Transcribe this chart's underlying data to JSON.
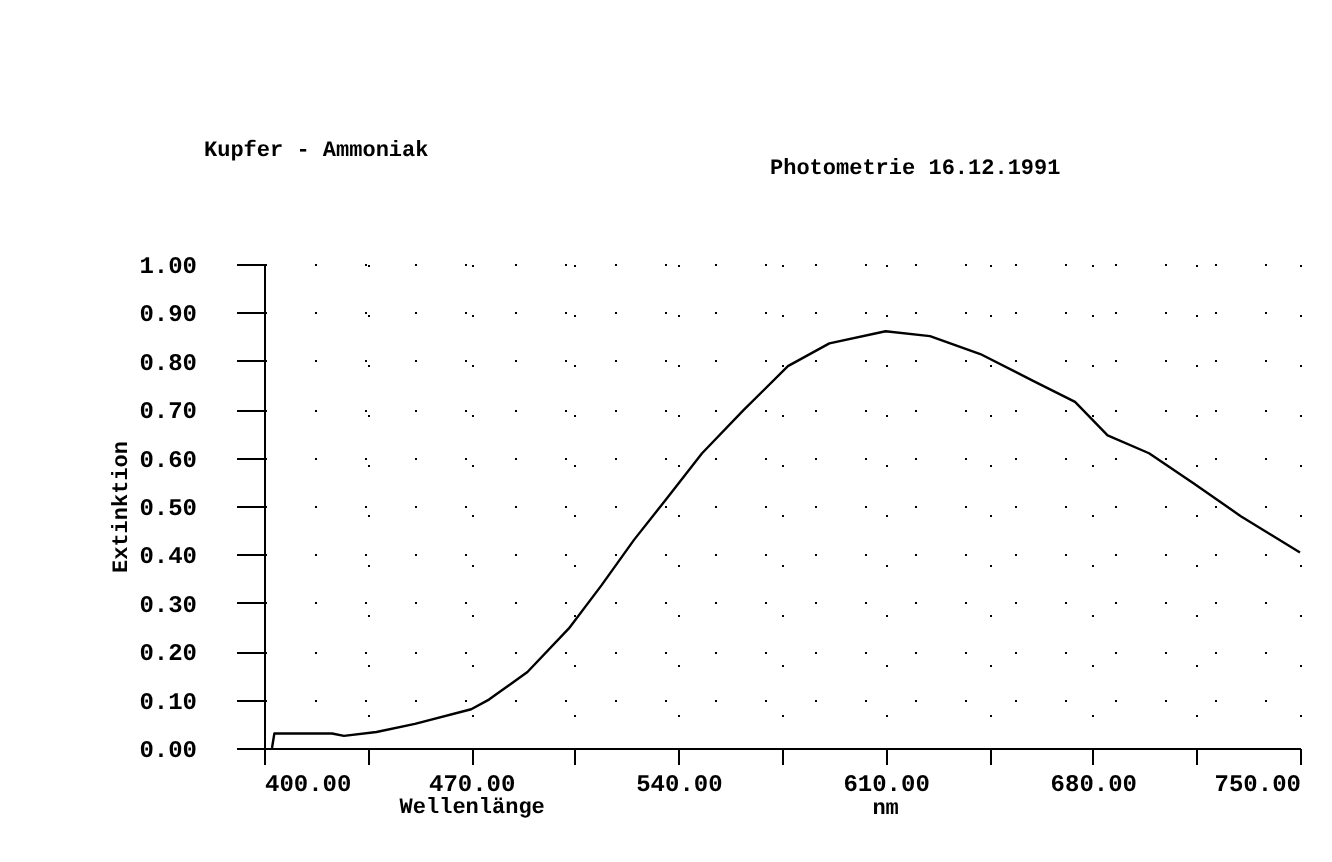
{
  "chart_data": {
    "type": "line",
    "title": "Kupfer      -  Ammoniak",
    "subtitle": "Photometrie      16.12.1991",
    "xlabel": "Wellenlänge",
    "ylabel": "Extinktion",
    "annotations": [
      "nm"
    ],
    "xlim": [
      400,
      750
    ],
    "ylim": [
      0,
      1
    ],
    "xticks": [
      {
        "value": 400,
        "label": "400.00"
      },
      {
        "value": 435,
        "label": null
      },
      {
        "value": 470,
        "label": "470.00"
      },
      {
        "value": 505,
        "label": null
      },
      {
        "value": 540,
        "label": "540.00"
      },
      {
        "value": 575,
        "label": null
      },
      {
        "value": 610,
        "label": "610.00"
      },
      {
        "value": 645,
        "label": null
      },
      {
        "value": 680,
        "label": "680.00"
      },
      {
        "value": 715,
        "label": null
      },
      {
        "value": 750,
        "label": "750.00"
      }
    ],
    "yticks": [
      {
        "value": 0,
        "label": "0.00"
      },
      {
        "value": 0.1,
        "label": "0.10"
      },
      {
        "value": 0.2,
        "label": "0.20"
      },
      {
        "value": 0.3,
        "label": "0.30"
      },
      {
        "value": 0.4,
        "label": "0.40"
      },
      {
        "value": 0.5,
        "label": "0.50"
      },
      {
        "value": 0.6,
        "label": "0.60"
      },
      {
        "value": 0.7,
        "label": "0.70"
      },
      {
        "value": 0.8,
        "label": "0.80"
      },
      {
        "value": 0.9,
        "label": "0.90"
      },
      {
        "value": 1,
        "label": "1.00"
      }
    ],
    "grid": true,
    "marker": "none",
    "line_style": "solid",
    "series": [
      {
        "color": "#000000",
        "x": [
          402.7,
          403.5,
          405,
          415,
          423,
          427,
          438,
          451,
          470,
          476,
          489,
          503,
          514,
          525,
          536,
          548,
          562,
          577,
          591,
          610,
          625,
          642,
          660,
          674,
          685,
          699,
          714,
          730,
          750
        ],
        "values": [
          0,
          0.03,
          0.03,
          0.03,
          0.03,
          0.025,
          0.033,
          0.05,
          0.08,
          0.1,
          0.157,
          0.247,
          0.336,
          0.43,
          0.515,
          0.609,
          0.698,
          0.789,
          0.836,
          0.861,
          0.851,
          0.814,
          0.758,
          0.715,
          0.646,
          0.609,
          0.547,
          0.479,
          0.404
        ]
      }
    ]
  }
}
